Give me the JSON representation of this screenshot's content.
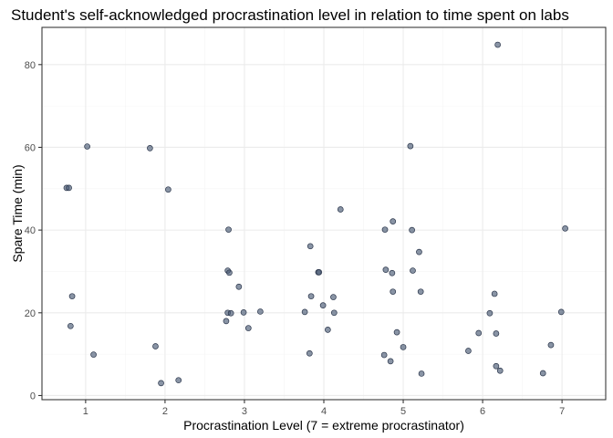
{
  "chart_data": {
    "type": "scatter",
    "title": "Student's self-acknowledged procrastination level in relation to time spent on labs",
    "xlabel": "Procrastination Level (7 = extreme procrastinator)",
    "ylabel": "Spare Time (min)",
    "xlim": [
      0.45,
      7.55
    ],
    "ylim": [
      -1,
      89
    ],
    "x_ticks": [
      1,
      2,
      3,
      4,
      5,
      6,
      7
    ],
    "y_ticks": [
      0,
      20,
      40,
      60,
      80
    ],
    "x_tick_labels": [
      "1",
      "2",
      "3",
      "4",
      "5",
      "6",
      "7"
    ],
    "y_tick_labels": [
      "0",
      "20",
      "40",
      "60",
      "80"
    ],
    "grid": true,
    "legend": "none",
    "colors": {
      "point": "#4a5a75",
      "grid": "#ebebeb",
      "border": "#333333"
    },
    "points": [
      {
        "x": 0.76,
        "y": 50.2
      },
      {
        "x": 0.79,
        "y": 50.2
      },
      {
        "x": 1.02,
        "y": 60.2
      },
      {
        "x": 0.83,
        "y": 24.0
      },
      {
        "x": 0.81,
        "y": 16.8
      },
      {
        "x": 1.1,
        "y": 9.9
      },
      {
        "x": 1.81,
        "y": 59.8
      },
      {
        "x": 2.04,
        "y": 49.8
      },
      {
        "x": 1.88,
        "y": 11.9
      },
      {
        "x": 1.95,
        "y": 3.0
      },
      {
        "x": 2.17,
        "y": 3.7
      },
      {
        "x": 2.8,
        "y": 40.1
      },
      {
        "x": 2.79,
        "y": 30.2
      },
      {
        "x": 2.81,
        "y": 29.7
      },
      {
        "x": 2.93,
        "y": 26.3
      },
      {
        "x": 2.79,
        "y": 20.0
      },
      {
        "x": 2.83,
        "y": 19.9
      },
      {
        "x": 2.77,
        "y": 18.0
      },
      {
        "x": 2.99,
        "y": 20.1
      },
      {
        "x": 3.05,
        "y": 16.3
      },
      {
        "x": 3.2,
        "y": 20.3
      },
      {
        "x": 3.76,
        "y": 20.2
      },
      {
        "x": 3.83,
        "y": 36.1
      },
      {
        "x": 3.93,
        "y": 29.8
      },
      {
        "x": 3.94,
        "y": 29.8
      },
      {
        "x": 3.84,
        "y": 24.0
      },
      {
        "x": 3.82,
        "y": 10.2
      },
      {
        "x": 3.99,
        "y": 21.8
      },
      {
        "x": 4.05,
        "y": 15.9
      },
      {
        "x": 4.12,
        "y": 23.8
      },
      {
        "x": 4.13,
        "y": 20.0
      },
      {
        "x": 4.21,
        "y": 45.0
      },
      {
        "x": 4.77,
        "y": 40.1
      },
      {
        "x": 4.78,
        "y": 30.4
      },
      {
        "x": 4.87,
        "y": 42.1
      },
      {
        "x": 4.86,
        "y": 29.6
      },
      {
        "x": 4.87,
        "y": 25.1
      },
      {
        "x": 4.92,
        "y": 15.3
      },
      {
        "x": 4.76,
        "y": 9.8
      },
      {
        "x": 4.84,
        "y": 8.3
      },
      {
        "x": 5.0,
        "y": 11.7
      },
      {
        "x": 5.09,
        "y": 60.3
      },
      {
        "x": 5.11,
        "y": 40.0
      },
      {
        "x": 5.12,
        "y": 30.2
      },
      {
        "x": 5.2,
        "y": 34.7
      },
      {
        "x": 5.22,
        "y": 25.1
      },
      {
        "x": 5.23,
        "y": 5.3
      },
      {
        "x": 6.19,
        "y": 84.8
      },
      {
        "x": 6.15,
        "y": 24.6
      },
      {
        "x": 6.09,
        "y": 19.9
      },
      {
        "x": 5.95,
        "y": 15.1
      },
      {
        "x": 6.17,
        "y": 15.0
      },
      {
        "x": 5.82,
        "y": 10.8
      },
      {
        "x": 6.17,
        "y": 7.1
      },
      {
        "x": 6.22,
        "y": 6.0
      },
      {
        "x": 7.04,
        "y": 40.4
      },
      {
        "x": 6.99,
        "y": 20.2
      },
      {
        "x": 6.86,
        "y": 12.2
      },
      {
        "x": 6.76,
        "y": 5.4
      }
    ]
  }
}
